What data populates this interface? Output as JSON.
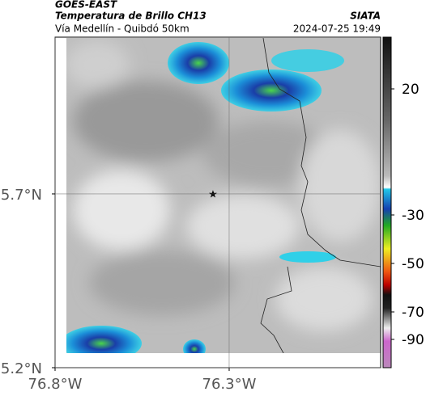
{
  "header": {
    "title": "GOES-EAST",
    "subtitle": "Temperatura de Brillo CH13",
    "source": "SIATA",
    "route": "Vía Medellín - Quibdó 50km",
    "timestamp": "2024-07-25 19:49"
  },
  "map": {
    "xlim": [
      -76.8,
      -75.865
    ],
    "ylim": [
      5.2,
      6.151
    ],
    "xticks": [
      {
        "value": -76.8,
        "label": "76.8°W"
      },
      {
        "value": -76.3,
        "label": "76.3°W"
      }
    ],
    "yticks": [
      {
        "value": 5.7,
        "label": "5.7°N"
      },
      {
        "value": 5.2,
        "label": "5.2°N"
      }
    ],
    "grid": true
  },
  "colorbar": {
    "ticks": [
      20,
      -30,
      -50,
      -70,
      -90
    ]
  }
}
